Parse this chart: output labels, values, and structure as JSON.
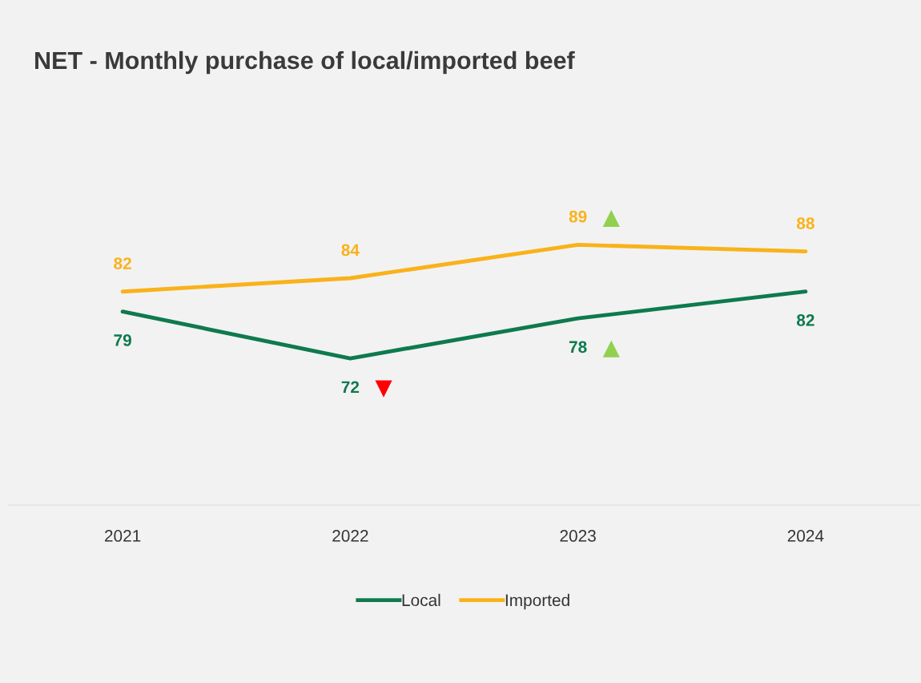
{
  "chart_data": {
    "type": "line",
    "title": "NET - Monthly purchase of local/imported beef",
    "categories": [
      "2021",
      "2022",
      "2023",
      "2024"
    ],
    "series": [
      {
        "name": "Local",
        "color": "#0e7a4e",
        "values": [
          79,
          72,
          78,
          82
        ]
      },
      {
        "name": "Imported",
        "color": "#f9b21a",
        "values": [
          82,
          84,
          89,
          88
        ]
      }
    ],
    "tick_labels": "x",
    "data_labels": true,
    "legend": "bottom",
    "marker": "none",
    "line_style": "solid",
    "annotations": [
      {
        "text": "▼",
        "x": "2022",
        "y": 72
      },
      {
        "text": "▲",
        "x": "2023",
        "y": 78
      },
      {
        "text": "▲",
        "x": "2023",
        "y": 89
      }
    ]
  }
}
